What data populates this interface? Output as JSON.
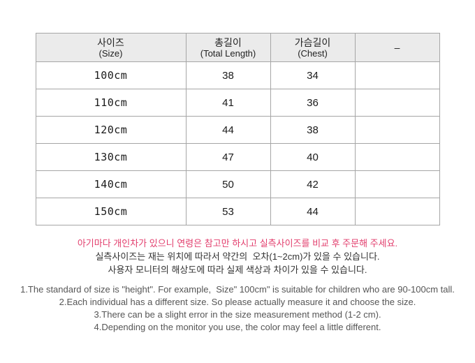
{
  "colors": {
    "accent-pink": "#e23e6d",
    "text-dark": "#333333",
    "text-gray": "#555555",
    "header-bg": "#ebebeb",
    "border": "#a6a6a6",
    "border-outer": "#8c8c8c"
  },
  "table": {
    "headers": [
      {
        "ko": "사이즈",
        "en": "(Size)"
      },
      {
        "ko": "총길이",
        "en": "(Total Length)"
      },
      {
        "ko": "가슴길이",
        "en": "(Chest)"
      },
      {
        "ko": "–",
        "en": ""
      }
    ],
    "rows": [
      {
        "size": "100cm",
        "total_length": "38",
        "chest": "34",
        "extra": ""
      },
      {
        "size": "110cm",
        "total_length": "41",
        "chest": "36",
        "extra": ""
      },
      {
        "size": "120cm",
        "total_length": "44",
        "chest": "38",
        "extra": ""
      },
      {
        "size": "130cm",
        "total_length": "47",
        "chest": "40",
        "extra": ""
      },
      {
        "size": "140cm",
        "total_length": "50",
        "chest": "42",
        "extra": ""
      },
      {
        "size": "150cm",
        "total_length": "53",
        "chest": "44",
        "extra": ""
      }
    ]
  },
  "notes": {
    "ko": [
      "아기마다 개인차가 있으니 연령은 참고만 하시고 실측사이즈를 비교 후 주문해 주세요.",
      "실측사이즈는 재는 위치에 따라서 약간의  오차(1~2cm)가 있을 수 있습니다.",
      "사용자 모니터의 해상도에 따라 실제 색상과 차이가 있을 수 있습니다."
    ],
    "en": [
      "1.The standard of size is \"height\". For example,  Size\" 100cm\" is suitable for children who are 90-100cm tall.",
      "2.Each individual has a different size. So please actually measure it and choose the size.",
      "3.There can be a slight error in the size measurement method (1-2 cm).",
      "4.Depending on the monitor you use, the color may feel a little different."
    ]
  }
}
